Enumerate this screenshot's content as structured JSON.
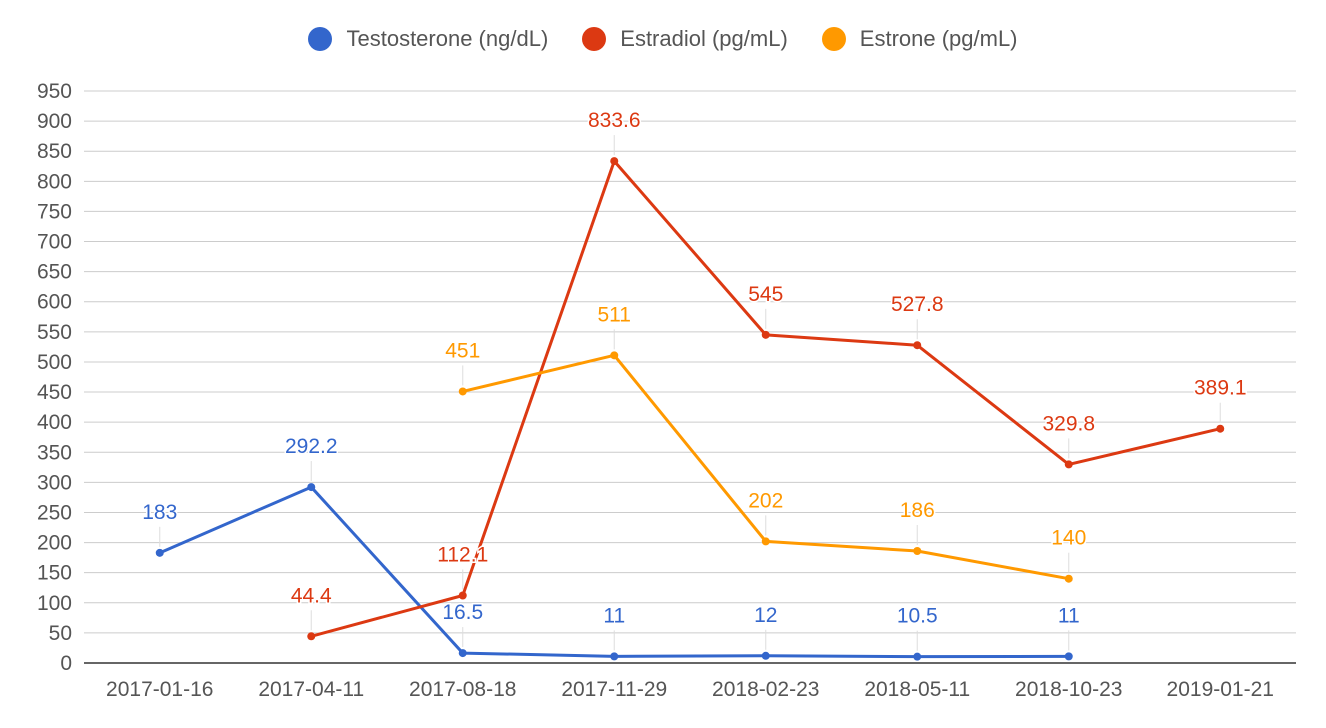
{
  "chart_data": {
    "type": "line",
    "title": "",
    "xlabel": "",
    "ylabel": "",
    "categories": [
      "2017-01-16",
      "2017-04-11",
      "2017-08-18",
      "2017-11-29",
      "2018-02-23",
      "2018-05-11",
      "2018-10-23",
      "2019-01-21"
    ],
    "ylim": [
      0,
      950
    ],
    "yticks": [
      0,
      50,
      100,
      150,
      200,
      250,
      300,
      350,
      400,
      450,
      500,
      550,
      600,
      650,
      700,
      750,
      800,
      850,
      900,
      950
    ],
    "grid": true,
    "legend_position": "top",
    "series": [
      {
        "name": "Testosterone (ng/dL)",
        "color": "#3366cc",
        "values": [
          183,
          292.2,
          16.5,
          11,
          12,
          10.5,
          11,
          null
        ],
        "labels": [
          "183",
          "292.2",
          "16.5",
          "11",
          "12",
          "10.5",
          "11",
          null
        ]
      },
      {
        "name": "Estradiol (pg/mL)",
        "color": "#dc3912",
        "values": [
          null,
          44.4,
          112.1,
          833.6,
          545,
          527.8,
          329.8,
          389.1
        ],
        "labels": [
          null,
          "44.4",
          "112.1",
          "833.6",
          "545",
          "527.8",
          "329.8",
          "389.1"
        ]
      },
      {
        "name": "Estrone (pg/mL)",
        "color": "#ff9900",
        "values": [
          null,
          null,
          451,
          511,
          202,
          186,
          140,
          null
        ],
        "labels": [
          null,
          null,
          "451",
          "511",
          "202",
          "186",
          "140",
          null
        ]
      }
    ]
  }
}
